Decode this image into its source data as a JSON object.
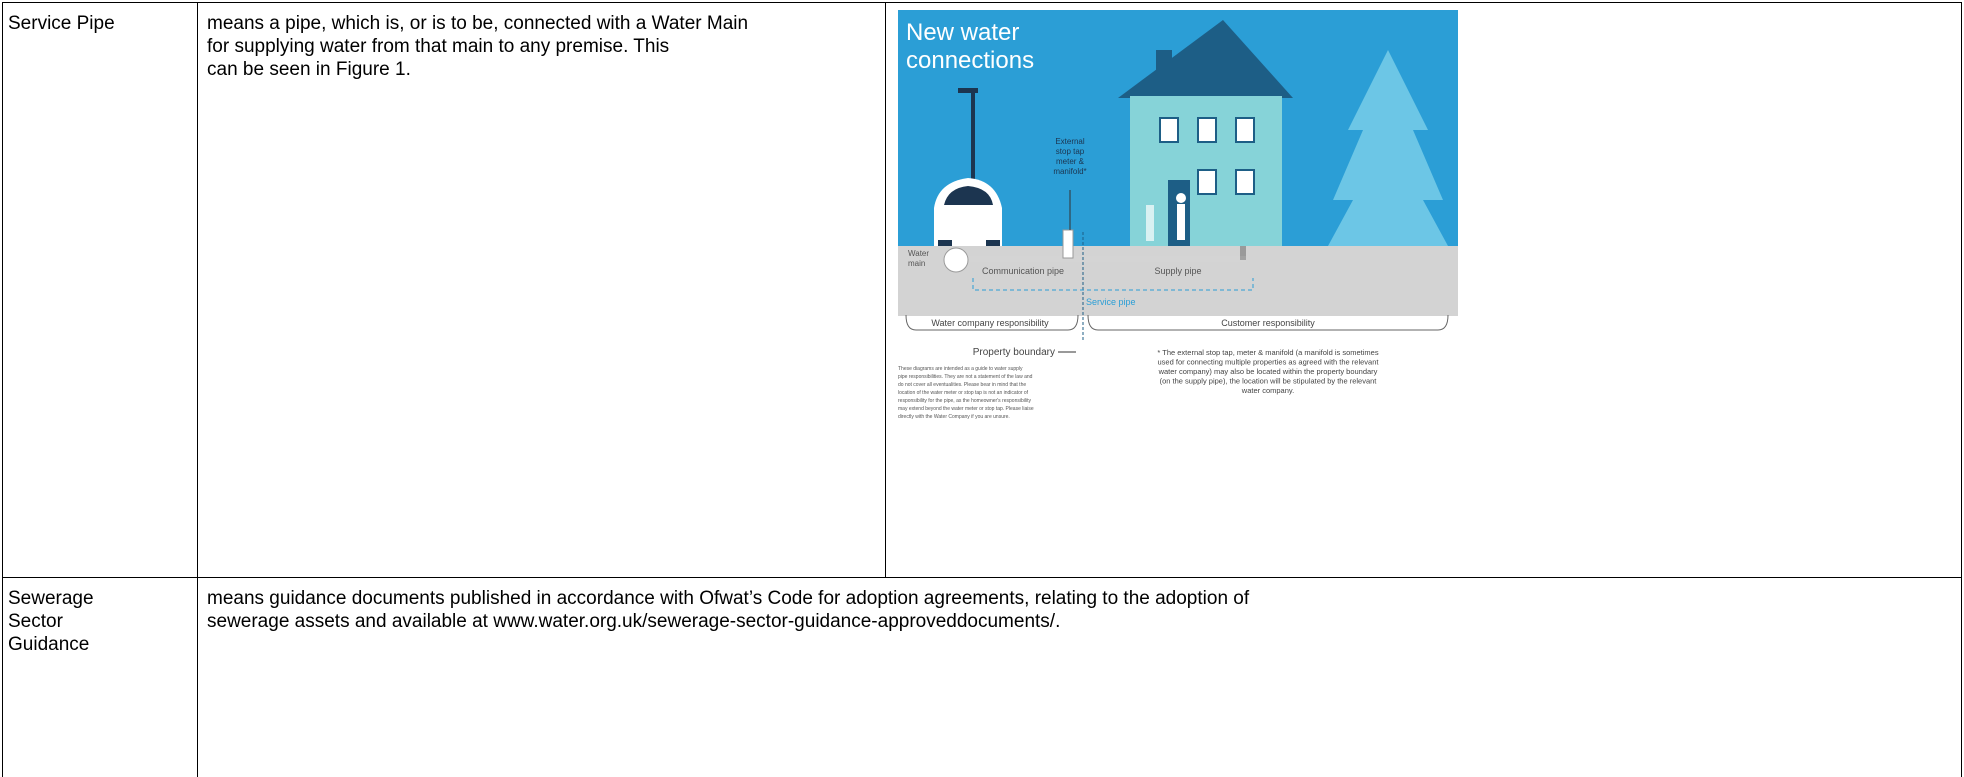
{
  "table": {
    "rows": [
      {
        "term": [
          "Service Pipe"
        ],
        "definition": [
          "means a pipe, which is, or is to be, connected with a Water Main",
          "for supplying water from that main to any premise. This",
          "can be seen in Figure 1."
        ],
        "figure": {
          "title": [
            "New water",
            "connections"
          ],
          "stop_tap_label": [
            "External",
            "stop tap",
            "meter &",
            "manifold*"
          ],
          "water_main_label": [
            "Water",
            "main"
          ],
          "communication_pipe": "Communication pipe",
          "supply_pipe": "Supply pipe",
          "service_pipe": "Service pipe",
          "water_company_responsibility": "Water company responsibility",
          "customer_responsibility": "Customer responsibility",
          "property_boundary": "Property boundary",
          "disclaimer": [
            "These diagrams are intended as a guide to water supply",
            "pipe responsibilities. They are not a statement of the law and",
            "do not cover all eventualities. Please bear in mind that the",
            "location of the water meter or stop tap is not an indicator of",
            "responsibility for the pipe, as the homeowner's responsibility",
            "may extend beyond the water meter or stop tap. Please liaise",
            "directly with the Water Company if you are unsure."
          ],
          "footnote": [
            "* The external stop tap, meter & manifold (a manifold is sometimes",
            "used for connecting multiple properties as agreed with the relevant",
            "water company) may also be located within the property boundary",
            "(on the supply pipe), the location will be stipulated by the relevant",
            "water company."
          ]
        }
      },
      {
        "term": [
          "Sewerage",
          "Sector",
          "Guidance"
        ],
        "definition": [
          "means guidance documents published in accordance with Ofwat’s Code for adoption agreements, relating to the adoption of",
          "sewerage assets and available at www.water.org.uk/sewerage-sector-guidance-approveddocuments/."
        ]
      }
    ]
  }
}
